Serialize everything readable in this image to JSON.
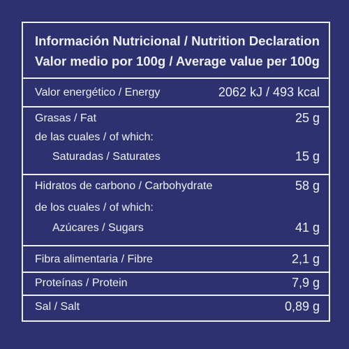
{
  "header": {
    "title": "Información Nutricional / Nutrition Declaration",
    "subtitle": "Valor medio por 100g / Average value per 100g"
  },
  "rows": [
    {
      "label": "Valor energético / Energy",
      "value": "2062 kJ / 493 kcal"
    },
    {
      "label": "Grasas / Fat",
      "value": "25 g"
    },
    {
      "label": "de las cuales / of which:"
    },
    {
      "label": "Saturadas / Saturates",
      "value": "15 g"
    },
    {
      "label": "Hidratos de carbono / Carbohydrate",
      "value": "58 g"
    },
    {
      "label": "de los cuales / of which:"
    },
    {
      "label": "Azúcares / Sugars",
      "value": "41 g"
    },
    {
      "label": "Fibra alimentaria / Fibre",
      "value": "2,1 g"
    },
    {
      "label": "Proteínas / Protein",
      "value": "7,9 g"
    },
    {
      "label": "Sal / Salt",
      "value": "0,89 g"
    }
  ]
}
